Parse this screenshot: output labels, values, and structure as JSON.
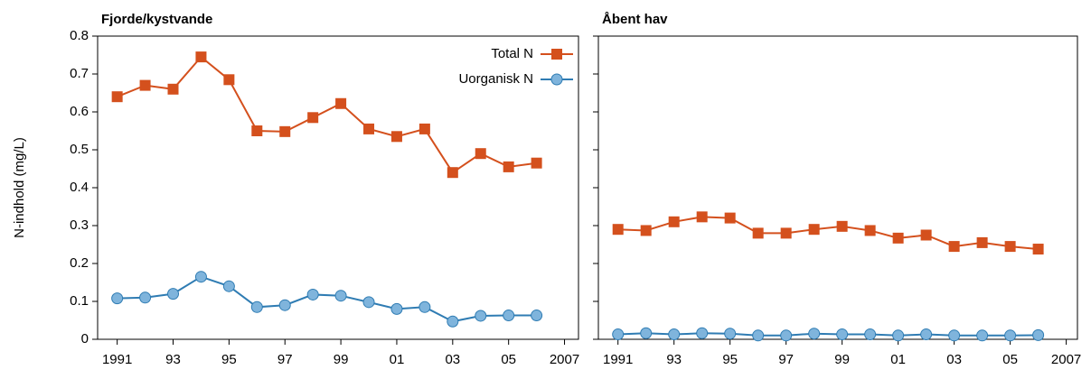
{
  "chart_data": [
    {
      "type": "line",
      "title": "Fjorde/kystvande",
      "ylabel": "N-indhold (mg/L)",
      "x": [
        1991,
        1992,
        1993,
        1994,
        1995,
        1996,
        1997,
        1998,
        1999,
        2000,
        2001,
        2002,
        2003,
        2004,
        2005,
        2006
      ],
      "series": [
        {
          "name": "Total N",
          "color": "#d4501d",
          "marker": "square",
          "values": [
            0.64,
            0.67,
            0.66,
            0.745,
            0.685,
            0.55,
            0.548,
            0.585,
            0.622,
            0.555,
            0.535,
            0.555,
            0.44,
            0.49,
            0.455,
            0.465
          ]
        },
        {
          "name": "Uorganisk N",
          "color": "#2f7cb3",
          "marker": "circle",
          "values": [
            0.108,
            0.11,
            0.12,
            0.165,
            0.14,
            0.085,
            0.09,
            0.118,
            0.115,
            0.098,
            0.08,
            0.085,
            0.047,
            0.062,
            0.063,
            0.063
          ]
        }
      ],
      "xlim": [
        1990.3,
        2007.5
      ],
      "ylim": [
        0,
        0.8
      ],
      "xticks": [
        1991,
        {
          "value": 1993,
          "label": "93"
        },
        {
          "value": 1995,
          "label": "95"
        },
        {
          "value": 1997,
          "label": "97"
        },
        {
          "value": 1999,
          "label": "99"
        },
        {
          "value": 2001,
          "label": "01"
        },
        {
          "value": 2003,
          "label": "03"
        },
        {
          "value": 2005,
          "label": "05"
        },
        2007
      ],
      "yticks": [
        0,
        0.1,
        0.2,
        0.3,
        0.4,
        0.5,
        0.6,
        0.7,
        0.8
      ],
      "show_ytick_labels": true,
      "legend": "upper right"
    },
    {
      "type": "line",
      "title": "Åbent hav",
      "x": [
        1991,
        1992,
        1993,
        1994,
        1995,
        1996,
        1997,
        1998,
        1999,
        2000,
        2001,
        2002,
        2003,
        2004,
        2005,
        2006
      ],
      "series": [
        {
          "name": "Total N",
          "color": "#d4501d",
          "marker": "square",
          "values": [
            0.29,
            0.287,
            0.31,
            0.323,
            0.32,
            0.28,
            0.28,
            0.29,
            0.298,
            0.287,
            0.267,
            0.275,
            0.245,
            0.255,
            0.245,
            0.238
          ]
        },
        {
          "name": "Uorganisk N",
          "color": "#2f7cb3",
          "marker": "circle",
          "values": [
            0.013,
            0.016,
            0.013,
            0.016,
            0.015,
            0.01,
            0.01,
            0.015,
            0.013,
            0.013,
            0.01,
            0.013,
            0.01,
            0.01,
            0.01,
            0.011
          ]
        }
      ],
      "xlim": [
        1990.3,
        2007.4
      ],
      "ylim": [
        0,
        0.8
      ],
      "xticks": [
        1991,
        {
          "value": 1993,
          "label": "93"
        },
        {
          "value": 1995,
          "label": "95"
        },
        {
          "value": 1997,
          "label": "97"
        },
        {
          "value": 1999,
          "label": "99"
        },
        {
          "value": 2001,
          "label": "01"
        },
        {
          "value": 2003,
          "label": "03"
        },
        {
          "value": 2005,
          "label": "05"
        },
        2007
      ],
      "yticks": [
        0,
        0.1,
        0.2,
        0.3,
        0.4,
        0.5,
        0.6,
        0.7,
        0.8
      ],
      "show_ytick_labels": false
    }
  ]
}
